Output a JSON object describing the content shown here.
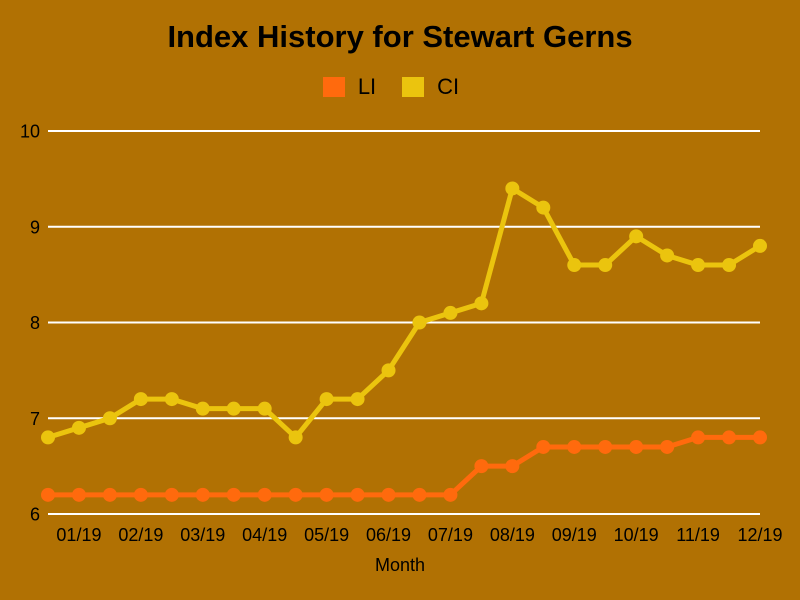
{
  "page": {
    "background_color": "#B17103",
    "text_color": "#000000"
  },
  "header": {
    "title": "Index History for Stewart Gerns"
  },
  "legend": {
    "position": "top-center",
    "items": [
      {
        "label": "LI",
        "color": "#FF6A0D"
      },
      {
        "label": "CI",
        "color": "#EBC40E"
      }
    ]
  },
  "chart_data": {
    "type": "line",
    "title": "Index History for Stewart Gerns",
    "xlabel": "Month",
    "ylabel": "",
    "months": [
      "01/19",
      "02/19",
      "03/19",
      "04/19",
      "05/19",
      "06/19",
      "07/19",
      "08/19",
      "09/19",
      "10/19",
      "11/19",
      "12/19"
    ],
    "points_per_month": 2,
    "x_tick_note": "month labels sit under the second of each month's two points",
    "ylim": [
      6,
      10
    ],
    "y_ticks": [
      6,
      7,
      8,
      9,
      10
    ],
    "grid": {
      "horizontal": true,
      "color": "#FFFFFF"
    },
    "marker": "circle",
    "series": [
      {
        "name": "LI",
        "color": "#FF6A0D",
        "values": [
          6.2,
          6.2,
          6.2,
          6.2,
          6.2,
          6.2,
          6.2,
          6.2,
          6.2,
          6.2,
          6.2,
          6.2,
          6.2,
          6.2,
          6.5,
          6.5,
          6.7,
          6.7,
          6.7,
          6.7,
          6.7,
          6.8,
          6.8,
          6.8
        ]
      },
      {
        "name": "CI",
        "color": "#EBC40E",
        "values": [
          6.8,
          6.9,
          7.0,
          7.2,
          7.2,
          7.1,
          7.1,
          7.1,
          6.8,
          7.2,
          7.2,
          7.5,
          8.0,
          8.1,
          8.2,
          9.4,
          9.2,
          8.6,
          8.6,
          8.9,
          8.7,
          8.6,
          8.6,
          8.8
        ]
      }
    ]
  }
}
